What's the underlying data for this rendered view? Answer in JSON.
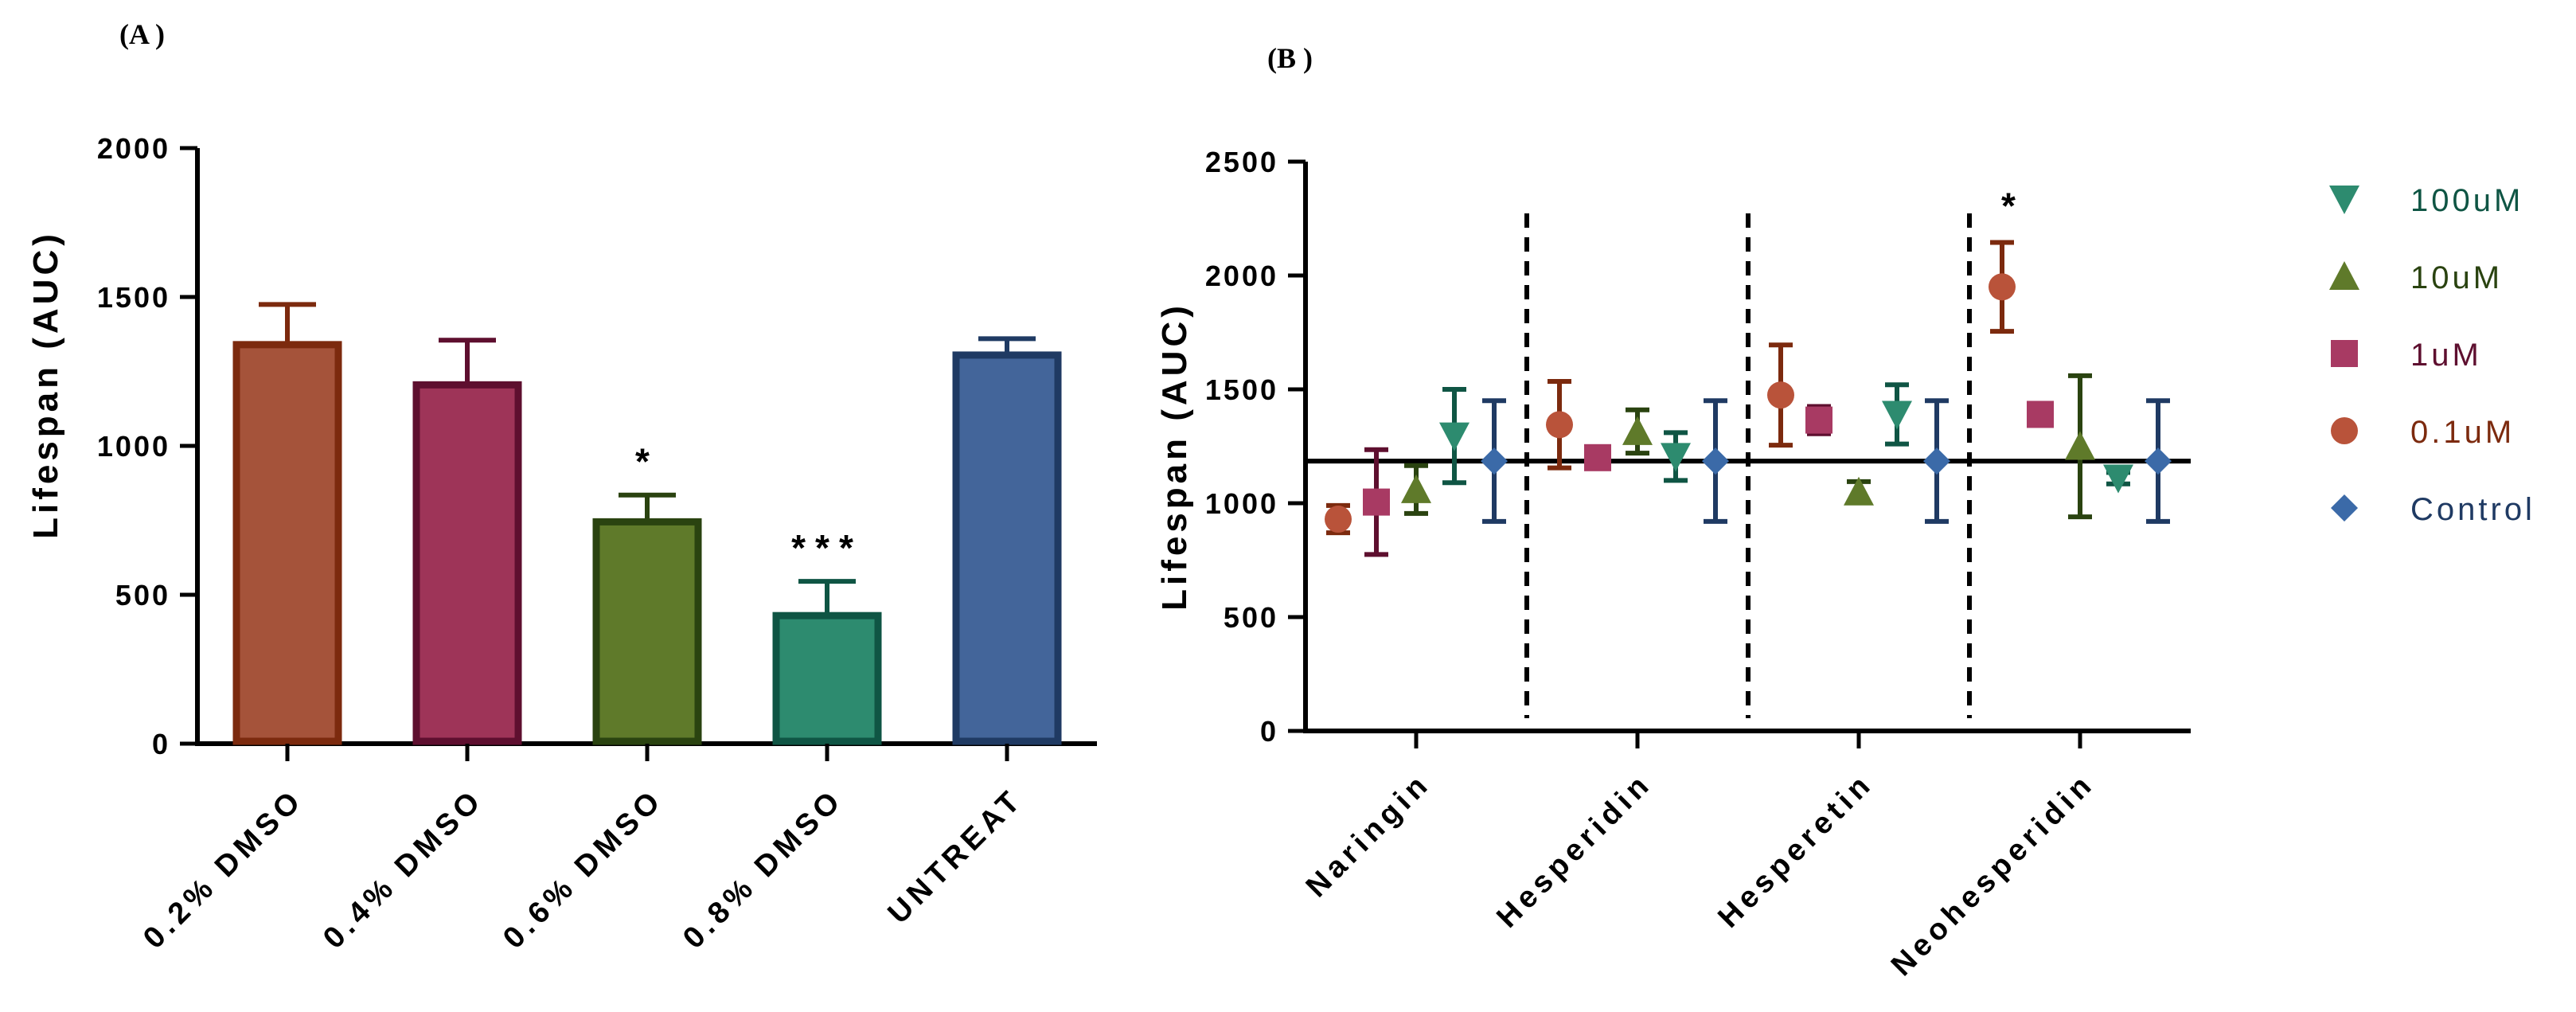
{
  "chart_data": [
    {
      "panel": "(A )",
      "type": "bar",
      "ylabel": "Lifespan (AUC)",
      "ylim": [
        0,
        2000
      ],
      "yticks": [
        0,
        500,
        1000,
        1500,
        2000
      ],
      "categories": [
        "0.2% DMSO",
        "0.4% DMSO",
        "0.6% DMSO",
        "0.8% DMSO",
        "UNTREAT"
      ],
      "values": [
        1340,
        1205,
        745,
        430,
        1305
      ],
      "errors": [
        135,
        150,
        90,
        115,
        55
      ],
      "significance": [
        "",
        "",
        "*",
        "***",
        ""
      ],
      "fill_colors": [
        "#a5533a",
        "#9e3458",
        "#5f7a2a",
        "#2d8b6f",
        "#43659a"
      ],
      "edge_colors": [
        "#7c2a0e",
        "#5e0f2f",
        "#2a4310",
        "#0f5544",
        "#1f3a63"
      ]
    },
    {
      "panel": "(B )",
      "type": "scatter",
      "ylabel": "Lifespan (AUC)",
      "ylim": [
        0,
        2500
      ],
      "yticks": [
        0,
        500,
        1000,
        1500,
        2000,
        2500
      ],
      "categories": [
        "Naringin",
        "Hesperidin",
        "Hesperetin",
        "Neohesperidin"
      ],
      "reference_line": 1185,
      "series": [
        {
          "name": "0.1uM",
          "marker": "circle",
          "color": "#b9533a",
          "err_color": "#7c2a0e",
          "values": [
            930,
            1345,
            1475,
            1950
          ],
          "errors": [
            60,
            190,
            220,
            195
          ]
        },
        {
          "name": "1uM",
          "marker": "square",
          "color": "#a83a63",
          "err_color": "#5e0f2f",
          "values": [
            1005,
            1200,
            1365,
            1390
          ],
          "errors": [
            230,
            25,
            60,
            30
          ]
        },
        {
          "name": "10uM",
          "marker": "triangle-up",
          "color": "#5f7a2a",
          "err_color": "#2a4310",
          "values": [
            1060,
            1315,
            1050,
            1250
          ],
          "errors": [
            105,
            95,
            45,
            310
          ]
        },
        {
          "name": "100uM",
          "marker": "triangle-down",
          "color": "#2d8b6f",
          "err_color": "#0f5544",
          "values": [
            1295,
            1205,
            1390,
            1110
          ],
          "errors": [
            205,
            105,
            130,
            25
          ]
        },
        {
          "name": "Control",
          "marker": "diamond",
          "color": "#3b6aa8",
          "err_color": "#1f3a63",
          "values": [
            1185,
            1185,
            1185,
            1185
          ],
          "errors": [
            265,
            265,
            265,
            265
          ]
        }
      ],
      "significance": [
        "",
        "",
        "",
        "*"
      ],
      "legend": [
        "100uM",
        "10uM",
        "1uM",
        "0.1uM",
        "Control"
      ],
      "legend_position": "right"
    }
  ]
}
